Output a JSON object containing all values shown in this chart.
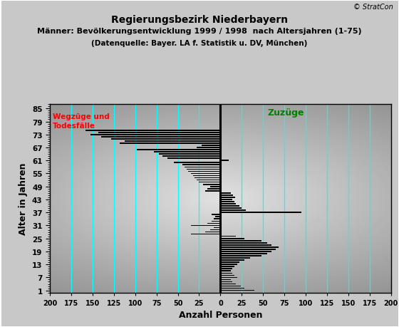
{
  "title_line1": "Regierungsbezirk Niederbayern",
  "title_line2_bold": "Männer:",
  "title_line2_rest": " Bevölkerungsentwicklung 1999 / 1998  nach Altersjahren (1-75)",
  "title_line3": "(Datenquelle: Bayer. LA f. Statistik u. DV, München)",
  "xlabel": "Anzahl Personen",
  "ylabel": "Alter in Jahren",
  "copyright": "© StratCon",
  "label_left": "Wegzüge und\nTodesfälle",
  "label_right": "Zuzüge",
  "xlim": [
    -200,
    200
  ],
  "ylim": [
    0,
    87
  ],
  "xticks": [
    -200,
    -175,
    -150,
    -125,
    -100,
    -75,
    -50,
    -25,
    0,
    25,
    50,
    75,
    100,
    125,
    150,
    175,
    200
  ],
  "xticklabels": [
    "200",
    "175",
    "150",
    "125",
    "100",
    "75",
    "50",
    "25",
    "0",
    "25",
    "50",
    "75",
    "100",
    "125",
    "150",
    "175",
    "200"
  ],
  "yticks": [
    1,
    7,
    13,
    19,
    25,
    31,
    37,
    43,
    49,
    55,
    61,
    67,
    73,
    79,
    85
  ],
  "bar_color": "#000000",
  "grid_color": "#00ffff",
  "ages": [
    1,
    2,
    3,
    4,
    5,
    6,
    7,
    8,
    9,
    10,
    11,
    12,
    13,
    14,
    15,
    16,
    17,
    18,
    19,
    20,
    21,
    22,
    23,
    24,
    25,
    26,
    27,
    28,
    29,
    30,
    31,
    32,
    33,
    34,
    35,
    36,
    37,
    38,
    39,
    40,
    41,
    42,
    43,
    44,
    45,
    46,
    47,
    48,
    49,
    50,
    51,
    52,
    53,
    54,
    55,
    56,
    57,
    58,
    59,
    60,
    61,
    62,
    63,
    64,
    65,
    66,
    67,
    68,
    69,
    70,
    71,
    72,
    73,
    74,
    75
  ],
  "values": [
    40,
    28,
    24,
    18,
    14,
    12,
    20,
    16,
    14,
    12,
    14,
    16,
    20,
    22,
    28,
    35,
    48,
    55,
    60,
    65,
    68,
    60,
    55,
    48,
    28,
    18,
    -35,
    -18,
    -12,
    -8,
    -35,
    -15,
    -10,
    -8,
    -6,
    -10,
    95,
    30,
    25,
    22,
    18,
    16,
    14,
    17,
    15,
    12,
    -18,
    -15,
    -12,
    -20,
    -25,
    -28,
    -30,
    -32,
    -35,
    -38,
    -40,
    -42,
    -45,
    -55,
    10,
    -62,
    -68,
    -72,
    -78,
    -98,
    -28,
    -22,
    -118,
    -112,
    -128,
    -140,
    -152,
    -143,
    -158
  ]
}
